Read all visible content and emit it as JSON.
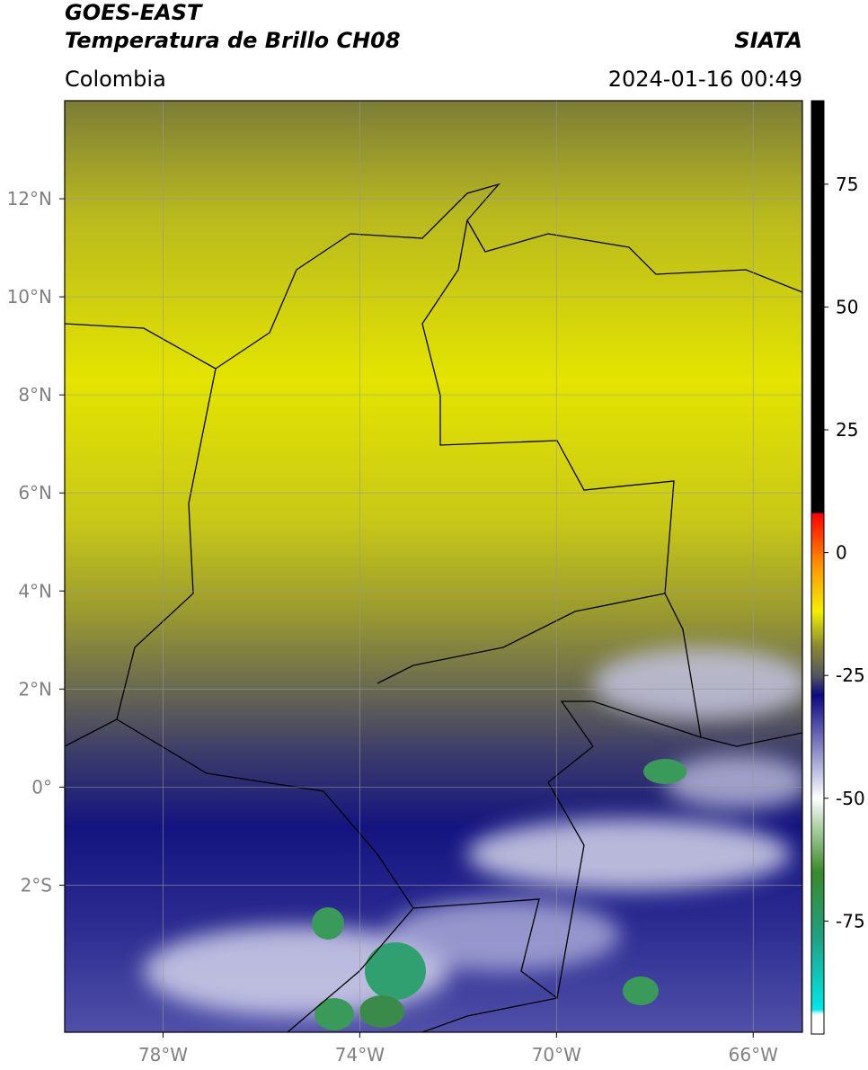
{
  "header": {
    "title": "GOES-EAST",
    "subtitle": "Temperatura de Brillo CH08",
    "source": "SIATA",
    "region": "Colombia",
    "datetime": "2024-01-16 00:49"
  },
  "map": {
    "xlim": [
      -80,
      -65
    ],
    "ylim": [
      -5,
      14
    ],
    "grid": true,
    "xticks": [
      {
        "value": -78,
        "label": "78°W"
      },
      {
        "value": -74,
        "label": "74°W"
      },
      {
        "value": -70,
        "label": "70°W"
      },
      {
        "value": -66,
        "label": "66°W"
      }
    ],
    "yticks": [
      {
        "value": -2,
        "label": "2°S"
      },
      {
        "value": 0,
        "label": "0°"
      },
      {
        "value": 2,
        "label": "2°N"
      },
      {
        "value": 4,
        "label": "4°N"
      },
      {
        "value": 6,
        "label": "6°N"
      },
      {
        "value": 8,
        "label": "8°N"
      },
      {
        "value": 10,
        "label": "10°N"
      },
      {
        "value": 12,
        "label": "12°N"
      }
    ]
  },
  "colorbar": {
    "lim": [
      -98,
      92
    ],
    "ticks": [
      -75,
      -50,
      -25,
      0,
      25,
      50,
      75
    ],
    "stops": [
      {
        "value": -98,
        "color": "#ffffff"
      },
      {
        "value": -94,
        "color": "#ffffff"
      },
      {
        "value": -93,
        "color": "#00e8e8"
      },
      {
        "value": -78,
        "color": "#20a080"
      },
      {
        "value": -65,
        "color": "#3a8a2a"
      },
      {
        "value": -55,
        "color": "#b8d8b0"
      },
      {
        "value": -50,
        "color": "#ffffff"
      },
      {
        "value": -40,
        "color": "#8888c8"
      },
      {
        "value": -29,
        "color": "#0a0a80"
      },
      {
        "value": -25,
        "color": "#555560"
      },
      {
        "value": -19,
        "color": "#8a8a30"
      },
      {
        "value": -12,
        "color": "#f0f000"
      },
      {
        "value": -3,
        "color": "#ff9900"
      },
      {
        "value": 8,
        "color": "#ff0000"
      },
      {
        "value": 8.1,
        "color": "#000000"
      },
      {
        "value": 92,
        "color": "#000000"
      }
    ]
  }
}
